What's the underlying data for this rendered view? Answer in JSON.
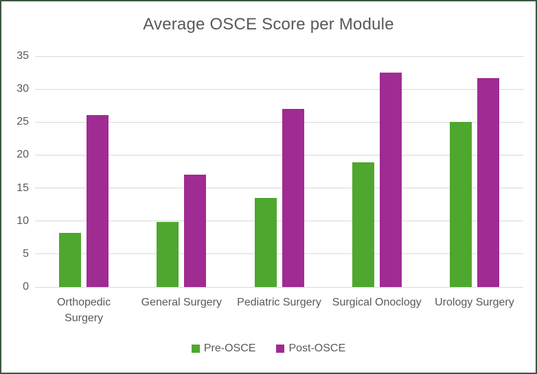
{
  "page": {
    "background_color": "#ffffff",
    "border_color": "#3a5741",
    "text_color": "#595959",
    "gridline_color": "#d9d9d9"
  },
  "chart_data": {
    "type": "bar",
    "title": "Average OSCE Score per Module",
    "categories": [
      "Orthopedic Surgery",
      "General Surgery",
      "Pediatric Surgery",
      "Surgical Onoclogy",
      "Urology Surgery"
    ],
    "series": [
      {
        "name": "Pre-OSCE",
        "color": "#4ea72e",
        "values": [
          8.2,
          9.9,
          13.5,
          18.9,
          25.0
        ]
      },
      {
        "name": "Post-OSCE",
        "color": "#a02b93",
        "values": [
          26.1,
          17.0,
          27.0,
          32.5,
          31.7
        ]
      }
    ],
    "ylim": [
      0,
      35
    ],
    "y_ticks": [
      0,
      5,
      10,
      15,
      20,
      25,
      30,
      35
    ],
    "grid": "horizontal",
    "legend_position": "bottom",
    "xlabel": "",
    "ylabel": ""
  }
}
